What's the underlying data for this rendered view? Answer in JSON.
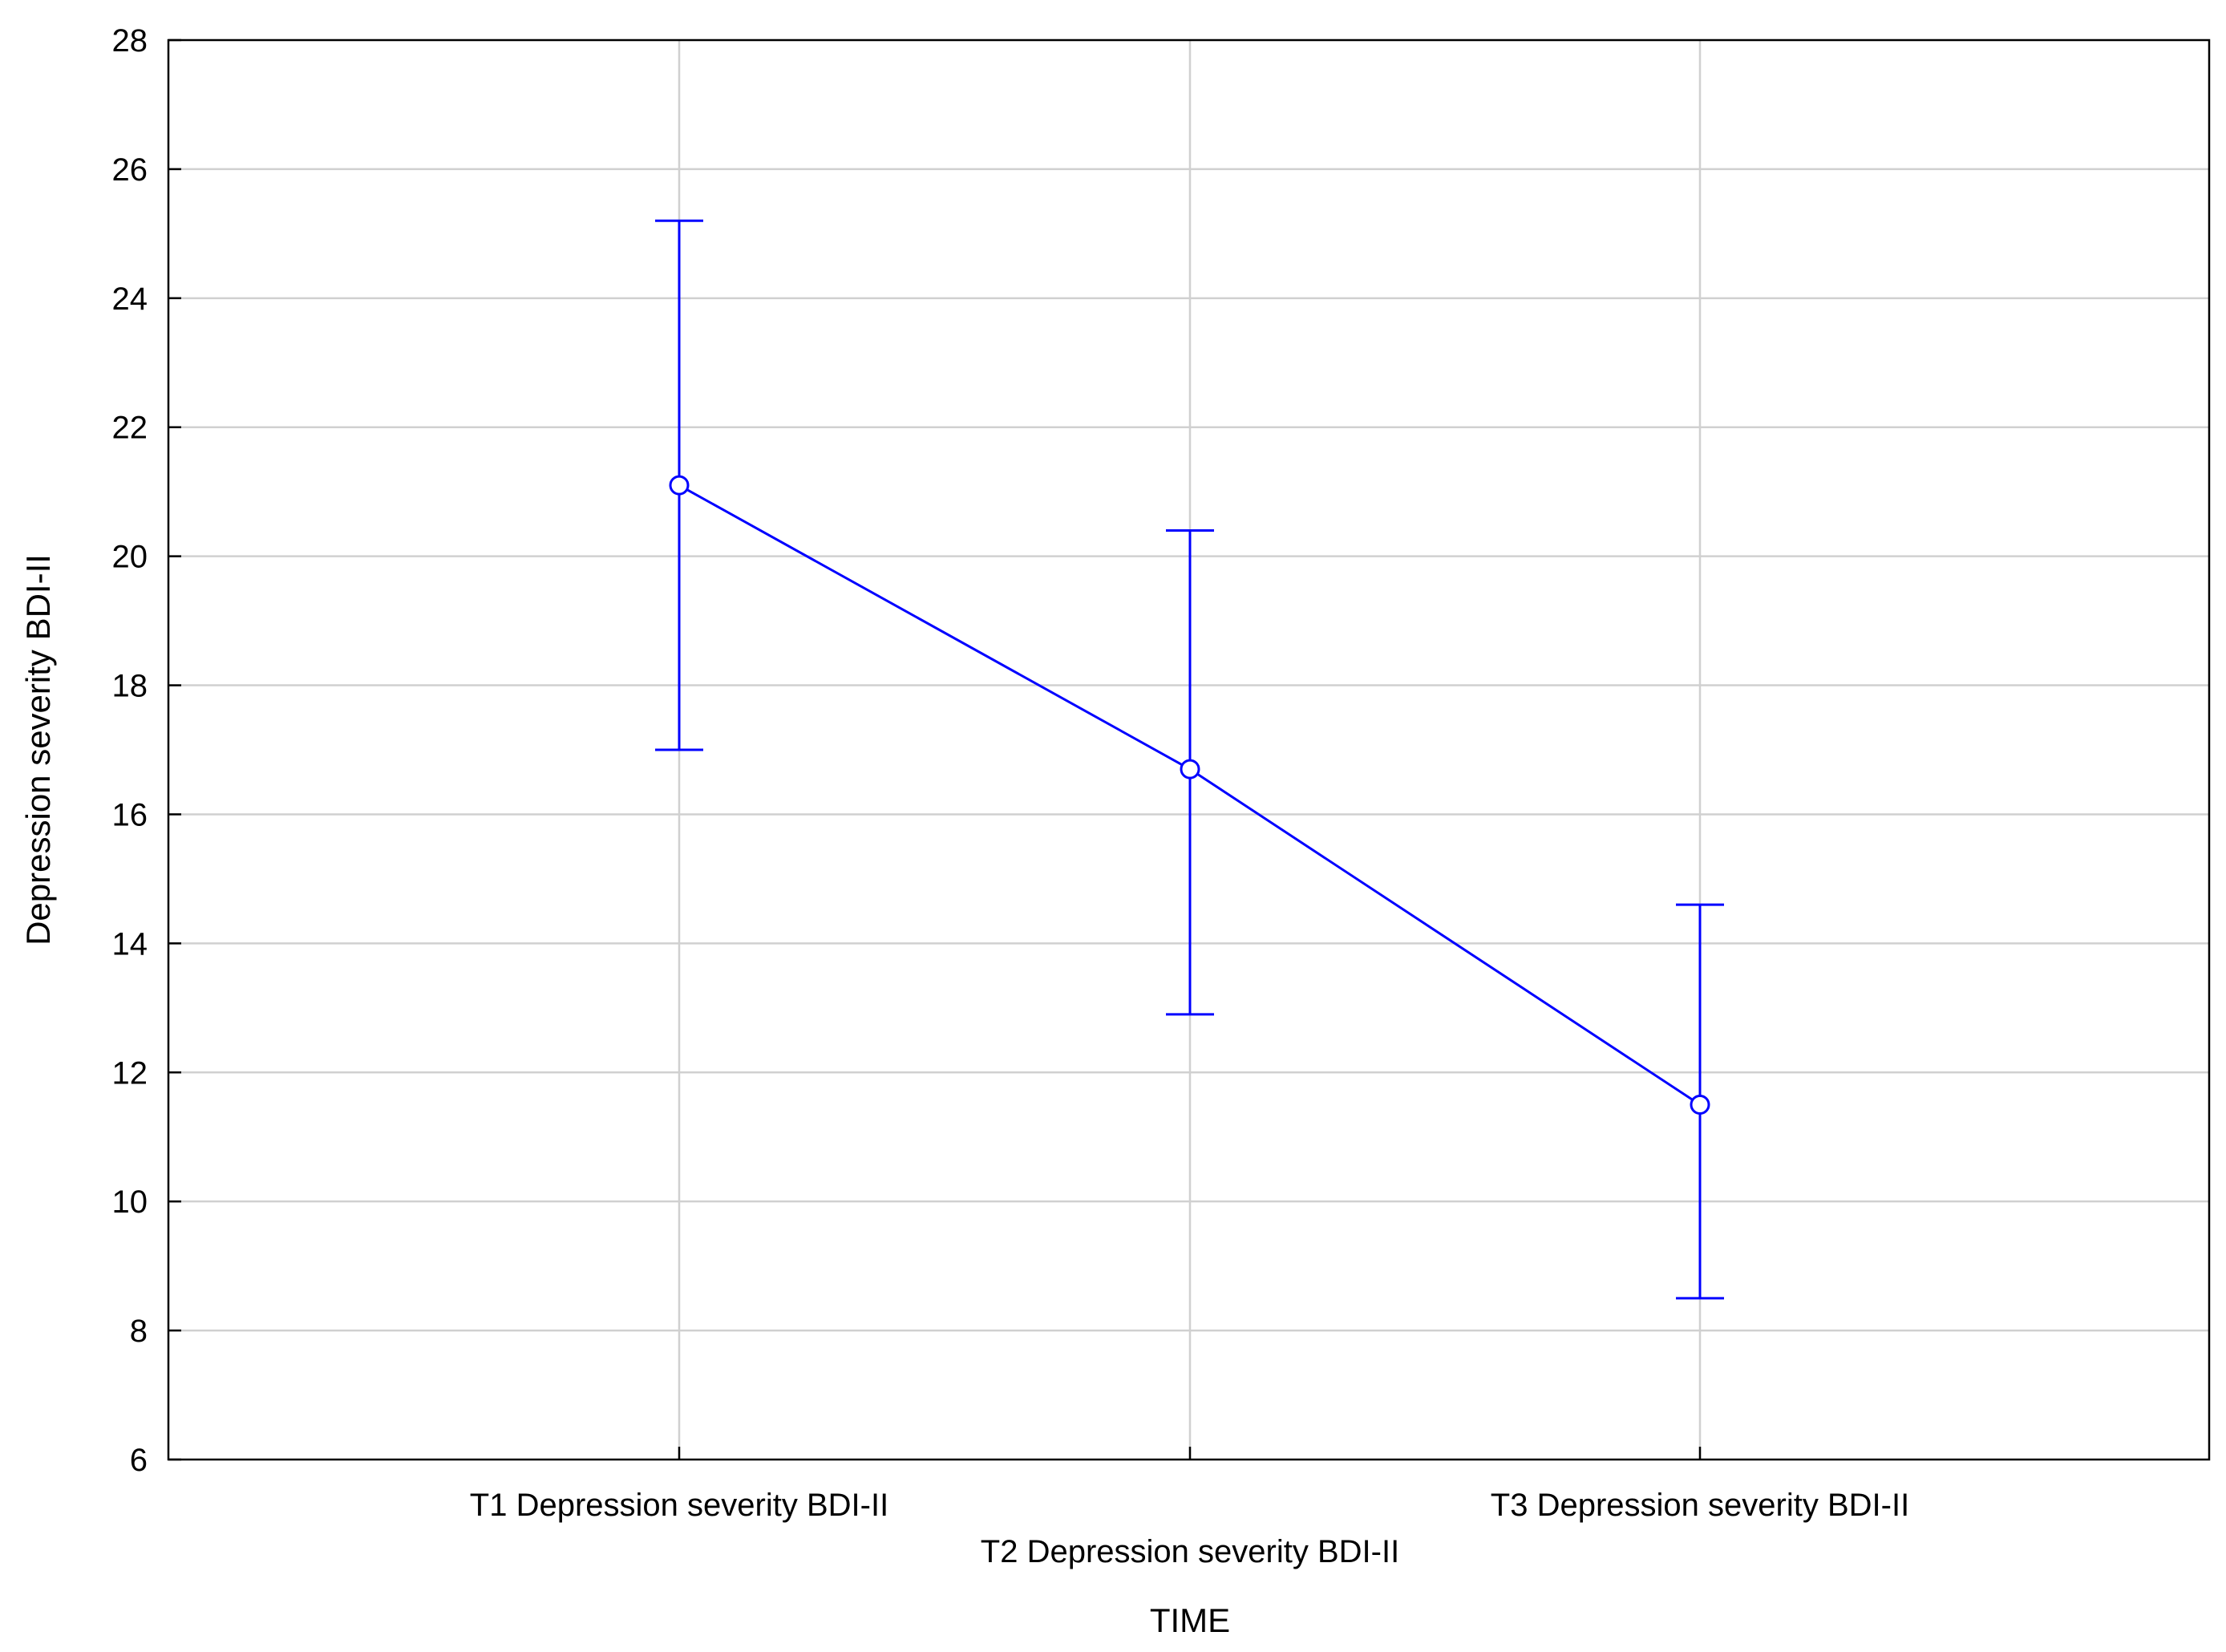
{
  "chart_data": {
    "type": "line",
    "title": "",
    "xlabel": "TIME",
    "ylabel": "Depression severity BDI-II",
    "categories": [
      "T1 Depression severity BDI-II",
      "T2 Depression severity BDI-II",
      "T3 Depression severity BDI-II"
    ],
    "series": [
      {
        "values": [
          21.1,
          16.7,
          11.5
        ],
        "error_low": [
          17.0,
          12.9,
          8.5
        ],
        "error_high": [
          25.2,
          20.4,
          14.6
        ]
      }
    ],
    "ylim": [
      6,
      28
    ],
    "yticks": [
      6,
      8,
      10,
      12,
      14,
      16,
      18,
      20,
      22,
      24,
      26,
      28
    ],
    "grid": true,
    "colors": {
      "series": "#0000ff",
      "grid": "#d0d0d0",
      "axis": "#000000"
    }
  }
}
